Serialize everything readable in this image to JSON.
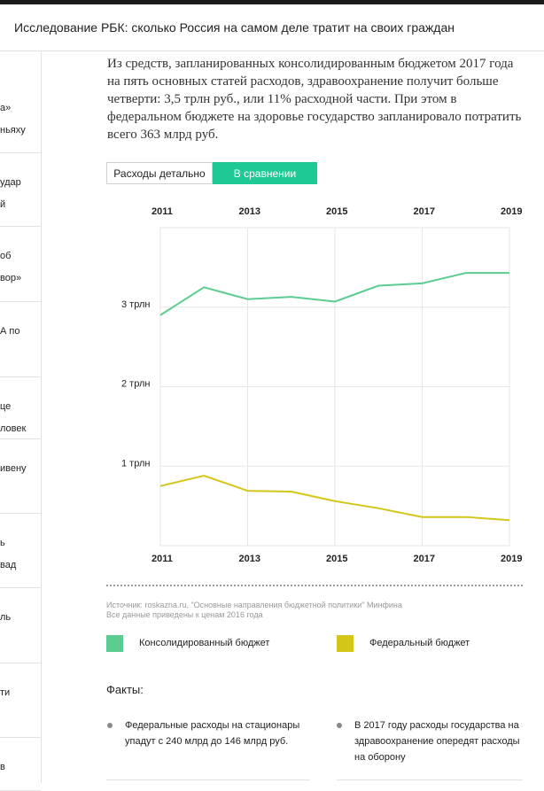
{
  "header": {
    "title": "Исследование РБК: сколько Россия на самом деле тратит на своих граждан"
  },
  "sidebar": {
    "items": [
      {
        "lines": [
          "а»",
          "ньяху"
        ]
      },
      {
        "lines": [
          "удар",
          "й"
        ]
      },
      {
        "lines": [
          "об",
          "вор»"
        ]
      },
      {
        "lines": [
          "А по",
          ""
        ]
      },
      {
        "lines": [
          "це",
          "ловек"
        ]
      },
      {
        "lines": [
          "ивену",
          ""
        ]
      },
      {
        "lines": [
          "ь",
          "вад"
        ]
      },
      {
        "lines": [
          "ль",
          ""
        ]
      },
      {
        "lines": [
          "ти",
          ""
        ]
      },
      {
        "lines": [
          "в",
          ""
        ]
      }
    ]
  },
  "article": {
    "intro": "Из средств, запланированных консолидированным бюджетом 2017 года на пять основных статей расходов, здравоохранение получит больше четверти: 3,5 трлн руб., или 11% расходной части. При этом в федеральном бюджете на здоровье государство запланировало потратить всего 363 млрд руб."
  },
  "tabs": {
    "detailed": "Расходы детально",
    "compare": "В сравнении"
  },
  "chart_data": {
    "type": "line",
    "x": [
      2011,
      2012,
      2013,
      2014,
      2015,
      2016,
      2017,
      2018,
      2019
    ],
    "x_tick_labels": [
      "2011",
      "2013",
      "2015",
      "2017",
      "2019"
    ],
    "y_tick_labels": [
      "1 трлн",
      "2 трлн",
      "3 трлн"
    ],
    "y_ticks": [
      1,
      2,
      3
    ],
    "ylim": [
      0,
      4.0
    ],
    "series": [
      {
        "name": "Консолидированный бюджет",
        "color": "#5ccc91",
        "values": [
          2.9,
          3.25,
          3.1,
          3.13,
          3.07,
          3.27,
          3.3,
          3.43,
          3.43
        ]
      },
      {
        "name": "Федеральный бюджет",
        "color": "#d4c619",
        "values": [
          0.75,
          0.88,
          0.69,
          0.68,
          0.56,
          0.47,
          0.36,
          0.36,
          0.32
        ]
      }
    ],
    "grid": true,
    "legend": "bottom"
  },
  "source": {
    "line1": "Источник: roskazna.ru, \"Основные направления бюджетной политики\" Минфина",
    "line2": "Все данные приведены к ценам 2016 года"
  },
  "facts": {
    "title": "Факты:",
    "items": [
      "Федеральные расходы на стационары упадут с 240 млрд до 146 млрд руб.",
      "В 2017 году расходы государства на здравоохранение опередят расходы на оборону"
    ]
  }
}
